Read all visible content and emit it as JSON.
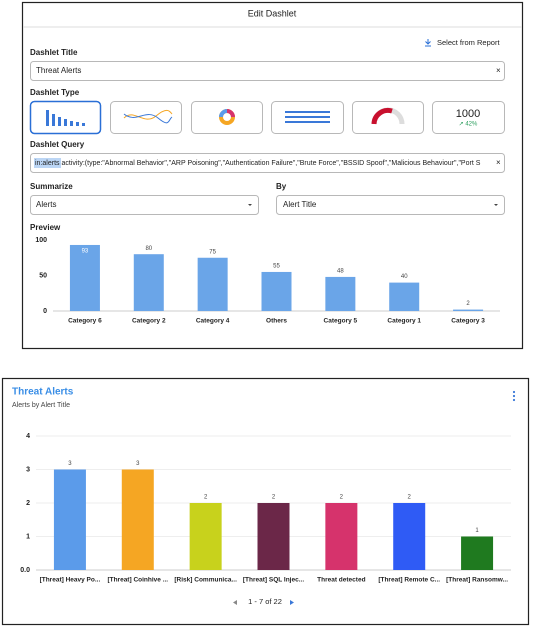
{
  "dialog": {
    "title": "Edit Dashlet",
    "select_from_report": "Select from Report",
    "dashlet_title_label": "Dashlet Title",
    "dashlet_title_value": "Threat Alerts",
    "dashlet_type_label": "Dashlet Type",
    "tile_number": "1000",
    "tile_change": "↗ 42%",
    "query_label": "Dashlet Query",
    "query_highlight": "in:alerts",
    "query_rest": " activity:(type:\"Abnormal Behavior\",\"ARP Poisoning\",\"Authentication Failure\",\"Brute Force\",\"BSSID Spoof\",\"Malicious Behaviour\",\"Port S",
    "summarize_label": "Summarize",
    "summarize_value": "Alerts",
    "by_label": "By",
    "by_value": "Alert Title",
    "preview_label": "Preview",
    "chart_data": {
      "type": "bar",
      "categories": [
        "Category 6",
        "Category 2",
        "Category 4",
        "Others",
        "Category 5",
        "Category 1",
        "Category 3"
      ],
      "values": [
        93,
        80,
        75,
        55,
        48,
        40,
        2
      ],
      "color": "#6aa5e8",
      "ylim": [
        0,
        100
      ],
      "yticks": [
        0,
        50,
        100
      ],
      "grid": false
    }
  },
  "card": {
    "pagination": "1 - 7 of 22",
    "chart_data": {
      "type": "bar",
      "title": "Threat Alerts",
      "subtitle": "Alerts by Alert Title",
      "categories": [
        "[Threat] Heavy Po...",
        "[Threat] Coinhive ...",
        "[Risk] Communica...",
        "[Threat] SQL Injec...",
        "Threat detected",
        "[Threat] Remote C...",
        "[Threat] Ransomw..."
      ],
      "values": [
        3,
        3,
        2,
        2,
        2,
        2,
        1
      ],
      "colors": [
        "#5b9bea",
        "#f5a623",
        "#c8d21c",
        "#6b2748",
        "#d6336c",
        "#2f5bf5",
        "#1f7a1f"
      ],
      "ylim": [
        0,
        4
      ],
      "yticks": [
        {
          "value": 0,
          "label": "0.0"
        },
        1,
        2,
        3,
        4
      ],
      "grid": true
    }
  }
}
